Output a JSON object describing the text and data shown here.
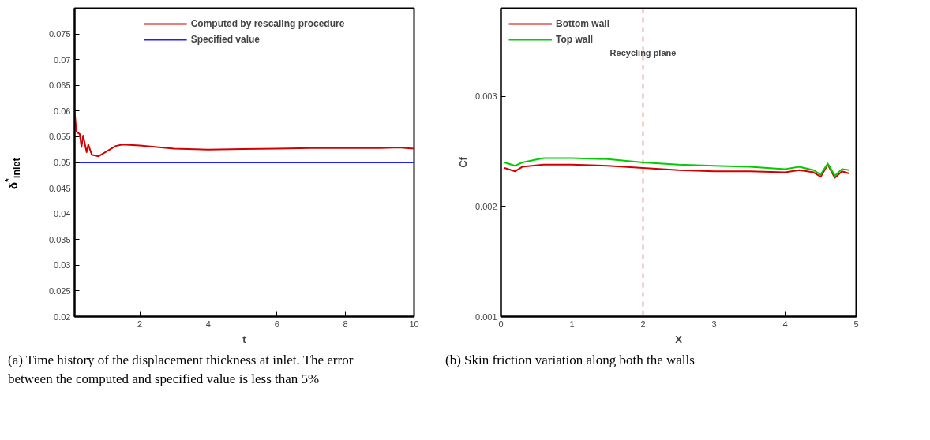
{
  "chart_data": [
    {
      "type": "line",
      "xlabel": "t",
      "ylabel": "δ$^{*}$$_{inlet}$",
      "xlim": [
        0.1,
        10
      ],
      "ylim": [
        0.02,
        0.08
      ],
      "xticks": [
        2,
        4,
        6,
        8,
        10
      ],
      "yticks": [
        0.02,
        0.025,
        0.03,
        0.035,
        0.04,
        0.045,
        0.05,
        0.055,
        0.06,
        0.065,
        0.07,
        0.075
      ],
      "legend": "top",
      "grid": false,
      "marker": "none",
      "line_style": "solid",
      "series": [
        {
          "name": "Computed by rescaling procedure",
          "color": "#d40000",
          "x": [
            0.1,
            0.15,
            0.25,
            0.3,
            0.35,
            0.45,
            0.5,
            0.6,
            0.8,
            1.0,
            1.3,
            1.5,
            2.0,
            2.5,
            3,
            4,
            5,
            6,
            7,
            8,
            9,
            9.6,
            10
          ],
          "values": [
            0.06,
            0.056,
            0.0555,
            0.053,
            0.0552,
            0.052,
            0.0535,
            0.0515,
            0.0512,
            0.052,
            0.0532,
            0.0535,
            0.0533,
            0.053,
            0.0527,
            0.0525,
            0.0526,
            0.0527,
            0.0528,
            0.0528,
            0.0528,
            0.0529,
            0.0527
          ]
        },
        {
          "name": "Specified value",
          "color": "#2020ff",
          "x": [
            0.1,
            10
          ],
          "values": [
            0.05,
            0.05
          ]
        }
      ],
      "annotations": [
        "(a) Time history of the displacement thickness at inlet. The error between the computed and specified value is less than 5%"
      ]
    },
    {
      "type": "line",
      "xlabel": "X",
      "ylabel": "Cf",
      "xlim": [
        0,
        5
      ],
      "ylim": [
        0.001,
        0.0038
      ],
      "xticks": [
        0,
        1,
        2,
        3,
        4,
        5
      ],
      "yticks": [
        0.001,
        0.002,
        0.003
      ],
      "legend": "top left",
      "grid": false,
      "marker": "none",
      "line_style": "solid",
      "ref_lines": [
        {
          "axis": "x",
          "value": 2,
          "label": "Recycling plane",
          "color": "#d04040",
          "line_style": "dashed"
        }
      ],
      "series": [
        {
          "name": "Bottom wall",
          "color": "#d40000",
          "x": [
            0.05,
            0.2,
            0.3,
            0.6,
            1.0,
            1.5,
            2.0,
            2.5,
            3.0,
            3.5,
            4.0,
            4.2,
            4.4,
            4.5,
            4.6,
            4.7,
            4.8,
            4.9
          ],
          "values": [
            0.00235,
            0.00232,
            0.00236,
            0.00238,
            0.00238,
            0.00237,
            0.00235,
            0.00233,
            0.00232,
            0.00232,
            0.00231,
            0.00233,
            0.00231,
            0.00227,
            0.00238,
            0.00226,
            0.00232,
            0.0023
          ]
        },
        {
          "name": "Top wall",
          "color": "#00cc00",
          "x": [
            0.05,
            0.2,
            0.3,
            0.6,
            1.0,
            1.5,
            2.0,
            2.5,
            3.0,
            3.5,
            4.0,
            4.2,
            4.4,
            4.5,
            4.6,
            4.7,
            4.8,
            4.9
          ],
          "values": [
            0.0024,
            0.00237,
            0.0024,
            0.00244,
            0.00244,
            0.00243,
            0.0024,
            0.00238,
            0.00237,
            0.00236,
            0.00234,
            0.00236,
            0.00233,
            0.00229,
            0.00239,
            0.00228,
            0.00234,
            0.00233
          ]
        }
      ],
      "annotations": [
        "(b) Skin friction variation along both the walls"
      ]
    }
  ]
}
